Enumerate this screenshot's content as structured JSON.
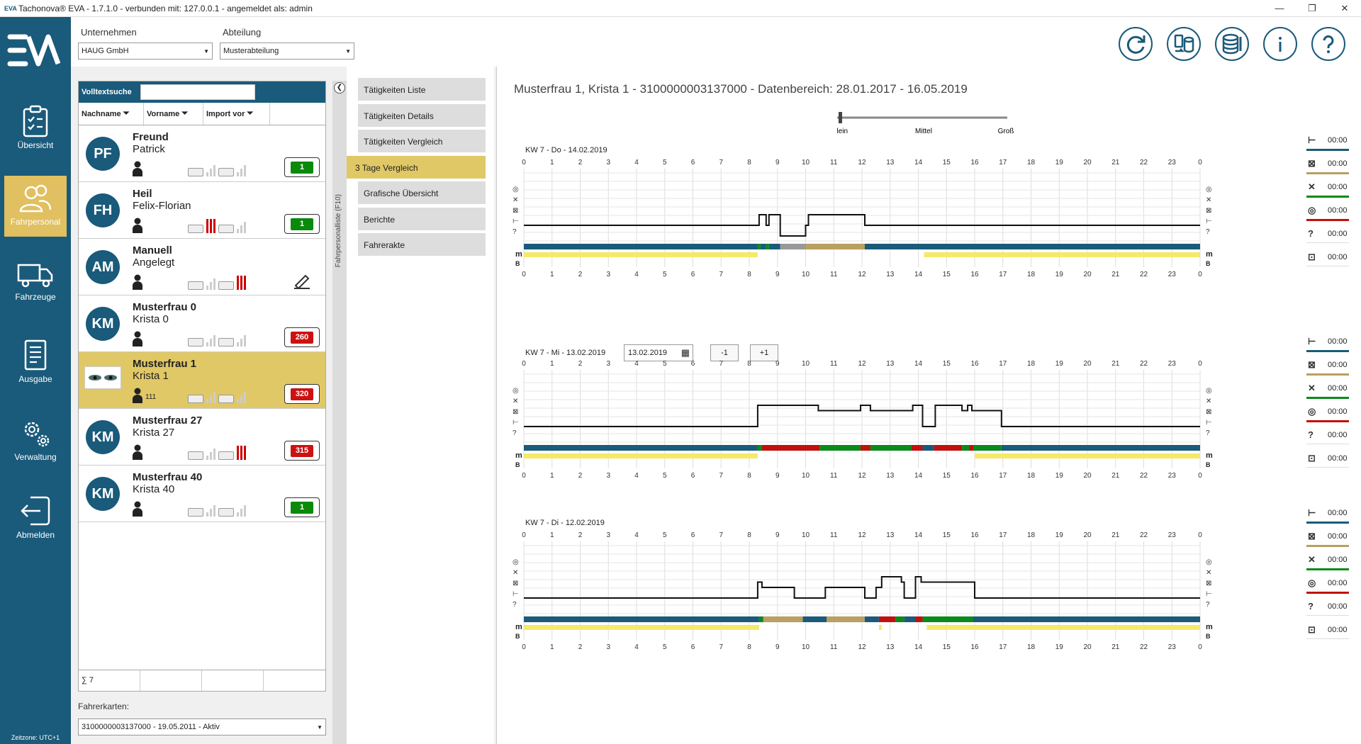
{
  "window": {
    "title": "Tachonova® EVA - 1.7.1.0 - verbunden mit: 127.0.0.1 - angemeldet als: admin",
    "min": "—",
    "max": "❐",
    "close": "✕"
  },
  "sidebar": {
    "items": [
      {
        "label": "Übersicht",
        "icon": "clipboard-icon"
      },
      {
        "label": "Fahrpersonal",
        "icon": "users-icon",
        "active": true
      },
      {
        "label": "Fahrzeuge",
        "icon": "truck-icon"
      },
      {
        "label": "Ausgabe",
        "icon": "document-icon"
      },
      {
        "label": "Verwaltung",
        "icon": "gears-icon"
      },
      {
        "label": "Abmelden",
        "icon": "logout-icon"
      }
    ],
    "timezone": "Zeitzone: UTC+1"
  },
  "topbar": {
    "company_label": "Unternehmen",
    "company_value": "HAUG GmbH",
    "department_label": "Abteilung",
    "department_value": "Musterabteilung",
    "buttons": [
      "sync-icon",
      "transfer-icon",
      "database-icon",
      "info-icon",
      "help-icon"
    ]
  },
  "driverlist": {
    "search_label": "Volltextsuche",
    "search_value": "",
    "col_lastname": "Nachname",
    "col_firstname": "Vorname",
    "col_import": "Import vor",
    "rows": [
      {
        "initials": "PF",
        "last": "Freund",
        "first": "Patrick",
        "count": "",
        "badge": "1",
        "badge_color": "#0a8a0a",
        "red_bars": false
      },
      {
        "initials": "FH",
        "last": "Heil",
        "first": "Felix-Florian",
        "count": "",
        "badge": "1",
        "badge_color": "#0a8a0a",
        "red_bars": true
      },
      {
        "initials": "AM",
        "last": "Manuell",
        "first": "Angelegt",
        "count": "",
        "badge": "",
        "badge_color": "",
        "red_bars": true
      },
      {
        "initials": "KM",
        "last": "Musterfrau 0",
        "first": "Krista 0",
        "count": "",
        "badge": "260",
        "badge_color": "#cc1111",
        "red_bars": false
      },
      {
        "initials": "",
        "last": "Musterfrau 1",
        "first": "Krista 1",
        "count": "111",
        "badge": "320",
        "badge_color": "#cc1111",
        "red_bars": false,
        "selected": true
      },
      {
        "initials": "KM",
        "last": "Musterfrau 27",
        "first": "Krista 27",
        "count": "",
        "badge": "315",
        "badge_color": "#cc1111",
        "red_bars": true
      },
      {
        "initials": "KM",
        "last": "Musterfrau 40",
        "first": "Krista 40",
        "count": "",
        "badge": "1",
        "badge_color": "#0a8a0a",
        "red_bars": false
      }
    ],
    "sum": "∑ 7",
    "cards_label": "Fahrerkarten:",
    "cards_value": "3100000003137000 - 19.05.2011 - Aktiv"
  },
  "collapse": {
    "label": "Fahrpersonalliste (F10)"
  },
  "menu": {
    "items": [
      "Tätigkeiten Liste",
      "Tätigkeiten Details",
      "Tätigkeiten Vergleich",
      "3 Tage Vergleich",
      "Grafische Übersicht",
      "Berichte",
      "Fahrerakte"
    ],
    "active_index": 3
  },
  "detail": {
    "title": "Musterfrau 1, Krista 1 - 3100000003137000 - Datenbereich: 28.01.2017 - 16.05.2019",
    "zoom": {
      "labels": [
        "Klein",
        "Mittel",
        "Groß"
      ],
      "value": "Klein"
    },
    "date_value": "13.02.2019",
    "prev_label": "-1",
    "next_label": "+1",
    "side_labels": {
      "m": "m",
      "b": "B"
    },
    "colors": {
      "rest": "#1a5a7a",
      "drive": "#0a8a1a",
      "work": "#c01010",
      "avail": "#b8a060",
      "unknown": "#999999",
      "yellow": "#f5e96a"
    },
    "charts": [
      {
        "title": "KW 7 - Do - 14.02.2019",
        "activity": [
          [
            0,
            0
          ],
          [
            8.35,
            0
          ],
          [
            8.35,
            1
          ],
          [
            8.6,
            1
          ],
          [
            8.6,
            0
          ],
          [
            8.7,
            0
          ],
          [
            8.7,
            1
          ],
          [
            9.1,
            1
          ],
          [
            9.1,
            -1
          ],
          [
            10,
            -1
          ],
          [
            10,
            0
          ],
          [
            10.1,
            0
          ],
          [
            10.1,
            1
          ],
          [
            12.1,
            1
          ],
          [
            12.1,
            0
          ],
          [
            24,
            0
          ]
        ],
        "bar": [
          [
            0,
            8.3,
            "rest"
          ],
          [
            8.3,
            8.4,
            "drive"
          ],
          [
            8.4,
            8.6,
            "rest"
          ],
          [
            8.6,
            8.7,
            "drive"
          ],
          [
            8.7,
            9.1,
            "rest"
          ],
          [
            9.1,
            10,
            "unknown"
          ],
          [
            10,
            12.1,
            "avail"
          ],
          [
            12.1,
            24,
            "rest"
          ]
        ],
        "yellow": [
          [
            0,
            8.3
          ],
          [
            14.2,
            24
          ]
        ],
        "legend": [
          "00:00",
          "00:00",
          "00:00",
          "00:00",
          "00:00",
          "00:00"
        ]
      },
      {
        "title": "KW 7 - Mi - 13.02.2019",
        "activity": [
          [
            0,
            0
          ],
          [
            8.3,
            0
          ],
          [
            8.3,
            2
          ],
          [
            10.45,
            2
          ],
          [
            10.45,
            1.5
          ],
          [
            11.95,
            1.5
          ],
          [
            11.95,
            2
          ],
          [
            12.3,
            2
          ],
          [
            12.3,
            1.5
          ],
          [
            13.8,
            1.5
          ],
          [
            13.8,
            2
          ],
          [
            14.15,
            2
          ],
          [
            14.15,
            0
          ],
          [
            14.6,
            0
          ],
          [
            14.6,
            2
          ],
          [
            15.55,
            2
          ],
          [
            15.55,
            1.5
          ],
          [
            15.75,
            1.5
          ],
          [
            15.75,
            2
          ],
          [
            15.9,
            2
          ],
          [
            15.9,
            1.5
          ],
          [
            16.95,
            1.5
          ],
          [
            16.95,
            0
          ],
          [
            24,
            0
          ]
        ],
        "bar": [
          [
            0,
            8.3,
            "rest"
          ],
          [
            8.3,
            8.45,
            "drive"
          ],
          [
            8.45,
            10.5,
            "work"
          ],
          [
            10.5,
            11.95,
            "drive"
          ],
          [
            11.95,
            12.3,
            "work"
          ],
          [
            12.3,
            13.75,
            "drive"
          ],
          [
            13.75,
            14.15,
            "work"
          ],
          [
            14.15,
            14.55,
            "rest"
          ],
          [
            14.55,
            15.55,
            "work"
          ],
          [
            15.55,
            15.8,
            "drive"
          ],
          [
            15.8,
            15.95,
            "work"
          ],
          [
            15.95,
            16.95,
            "drive"
          ],
          [
            16.95,
            24,
            "rest"
          ]
        ],
        "yellow": [
          [
            0,
            8.3
          ],
          [
            16,
            24
          ]
        ],
        "legend": [
          "00:00",
          "00:00",
          "00:00",
          "00:00",
          "00:00",
          "00:00"
        ]
      },
      {
        "title": "KW 7 - Di - 12.02.2019",
        "activity": [
          [
            0,
            0
          ],
          [
            8.3,
            0
          ],
          [
            8.3,
            1.5
          ],
          [
            8.45,
            1.5
          ],
          [
            8.45,
            1
          ],
          [
            9.6,
            1
          ],
          [
            9.6,
            0
          ],
          [
            10.7,
            0
          ],
          [
            10.7,
            1
          ],
          [
            12.1,
            1
          ],
          [
            12.1,
            0
          ],
          [
            12.5,
            0
          ],
          [
            12.5,
            1
          ],
          [
            12.7,
            1
          ],
          [
            12.7,
            2
          ],
          [
            13.4,
            2
          ],
          [
            13.4,
            1.5
          ],
          [
            13.5,
            1.5
          ],
          [
            13.5,
            0
          ],
          [
            13.9,
            0
          ],
          [
            13.9,
            2
          ],
          [
            14.1,
            2
          ],
          [
            14.1,
            1.5
          ],
          [
            16,
            1.5
          ],
          [
            16,
            0
          ],
          [
            24,
            0
          ]
        ],
        "bar": [
          [
            0,
            8.35,
            "rest"
          ],
          [
            8.35,
            8.5,
            "drive"
          ],
          [
            8.5,
            9.9,
            "avail"
          ],
          [
            9.9,
            10.75,
            "rest"
          ],
          [
            10.75,
            12.1,
            "avail"
          ],
          [
            12.1,
            12.6,
            "rest"
          ],
          [
            12.6,
            13.2,
            "work"
          ],
          [
            13.2,
            13.5,
            "drive"
          ],
          [
            13.5,
            13.9,
            "rest"
          ],
          [
            13.9,
            14.15,
            "work"
          ],
          [
            14.15,
            15.95,
            "drive"
          ],
          [
            15.95,
            24,
            "rest"
          ]
        ],
        "yellow": [
          [
            0,
            8.35
          ],
          [
            12.6,
            12.7
          ],
          [
            14.3,
            24
          ]
        ],
        "legend": [
          "00:00",
          "00:00",
          "00:00",
          "00:00",
          "00:00",
          "00:00"
        ]
      }
    ],
    "legend_icons": [
      "rest-icon",
      "availability-icon",
      "work-icon",
      "drive-icon",
      "unknown-icon",
      "card-icon"
    ],
    "legend_colors": [
      "#1a5a7a",
      "#b8a060",
      "#0a8a1a",
      "#c01010",
      "#ffffff",
      "#ffffff"
    ]
  }
}
